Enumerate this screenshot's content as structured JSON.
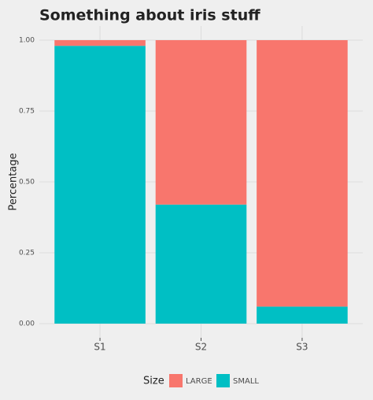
{
  "chart_data": {
    "type": "stacked_bar",
    "title": "Something about iris stuff",
    "y_label": "Percentage",
    "legend_title": "Size",
    "categories": [
      "S1",
      "S2",
      "S3"
    ],
    "series": [
      {
        "name": "LARGE",
        "color": "#f8766d",
        "values": [
          0.02,
          0.58,
          0.94
        ]
      },
      {
        "name": "SMALL",
        "color": "#00bfc4",
        "values": [
          0.98,
          0.42,
          0.06
        ]
      }
    ],
    "ylim": [
      -0.05,
      1.05
    ],
    "yticks": [
      {
        "value": 0,
        "label": "0.00"
      },
      {
        "value": 0.25,
        "label": "0.25"
      },
      {
        "value": 0.5,
        "label": "0.50"
      },
      {
        "value": 0.75,
        "label": "0.75"
      },
      {
        "value": 1,
        "label": "1.00"
      }
    ],
    "grid": true,
    "legend_position": "bottom"
  }
}
